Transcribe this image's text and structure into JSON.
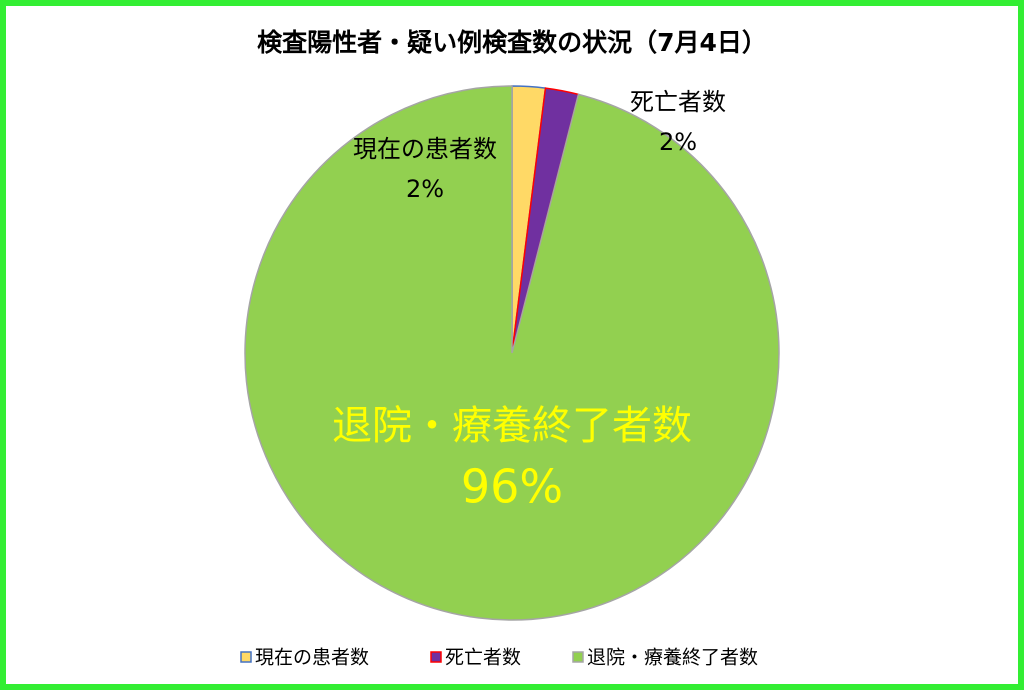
{
  "chart_data": {
    "type": "pie",
    "title": "検査陽性者・疑い例検査数の状況（7月4日）",
    "categories": [
      "現在の患者数",
      "死亡者数",
      "退院・療養終了者数"
    ],
    "values": [
      2,
      2,
      96
    ],
    "value_labels": [
      "2%",
      "2%",
      "96%"
    ],
    "colors": [
      "#ffd966",
      "#7030a0",
      "#92d050"
    ],
    "edge_colors": [
      "#4472c4",
      "#ff0000",
      "#a5a5a5"
    ],
    "legend": "bottom"
  }
}
